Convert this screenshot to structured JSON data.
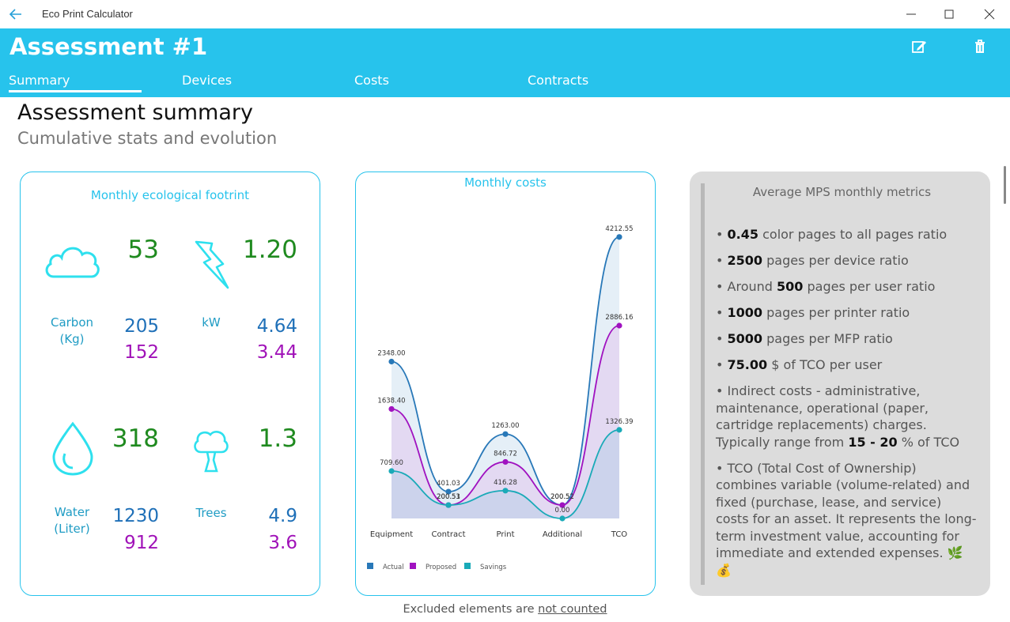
{
  "window": {
    "app_title": "Eco Print Calculator"
  },
  "header": {
    "title": "Assessment #1"
  },
  "tabs": [
    {
      "label": "Summary"
    },
    {
      "label": "Devices"
    },
    {
      "label": "Costs"
    },
    {
      "label": "Contracts"
    }
  ],
  "page": {
    "title": "Assessment summary",
    "subtitle": "Cumulative stats and evolution"
  },
  "eco": {
    "title": "Monthly ecological footrint",
    "carbon": {
      "label": "Carbon (Kg)",
      "total": "53",
      "actual": "205",
      "proposed": "152"
    },
    "kw": {
      "label": "kW",
      "total": "1.20",
      "actual": "4.64",
      "proposed": "3.44"
    },
    "water": {
      "label": "Water (Liter)",
      "total": "318",
      "actual": "1230",
      "proposed": "912"
    },
    "trees": {
      "label": "Trees",
      "total": "1.3",
      "actual": "4.9",
      "proposed": "3.6"
    }
  },
  "chart_data": {
    "type": "area",
    "title": "Monthly costs",
    "categories": [
      "Equipment",
      "Contract",
      "Print",
      "Additional",
      "TCO"
    ],
    "ylim": [
      0,
      4400
    ],
    "series": [
      {
        "name": "Actual",
        "values": [
          2348.0,
          401.03,
          1263.0,
          200.52,
          4212.55
        ],
        "labels": [
          "2348.00",
          "401.03",
          "1263.00",
          "200.52",
          "4212.55"
        ],
        "color": "#2878b8",
        "fill": "#dce9f4"
      },
      {
        "name": "Proposed",
        "values": [
          1638.4,
          200.51,
          846.72,
          200.52,
          2886.16
        ],
        "labels": [
          "1638.40",
          "200.51",
          "846.72",
          "200.52",
          "2886.16"
        ],
        "color": "#a012c0",
        "fill": "#e2d2f0"
      },
      {
        "name": "Savings",
        "values": [
          709.6,
          200.53,
          416.28,
          0.0,
          1326.39
        ],
        "labels": [
          "709.60",
          "200.53",
          "416.28",
          "0.00",
          "1326.39"
        ],
        "color": "#1aaab8",
        "fill": "#c4d0ea"
      }
    ]
  },
  "metrics": {
    "title": "Average MPS monthly metrics",
    "items": [
      {
        "bold": "0.45",
        "text": " color pages to all pages ratio"
      },
      {
        "bold": "2500",
        "text": " pages per device ratio"
      },
      {
        "pre": "Around ",
        "bold": "500",
        "text": " pages per user ratio"
      },
      {
        "bold": "1000",
        "text": " pages per printer ratio"
      },
      {
        "bold": "5000",
        "text": " pages per MFP ratio"
      },
      {
        "bold": "75.00",
        "text": " $ of TCO per user"
      }
    ],
    "indirect": {
      "pre": "Indirect costs - administrative, maintenance,  operational (paper, cartridge replacements) charges. Typically range from ",
      "bold": "15 - 20",
      "post": " % of TCO"
    },
    "tco": "TCO (Total Cost of Ownership) combines variable (volume-related) and fixed (purchase, lease, and service) costs for an asset. It represents the long-term investment value, accounting for immediate and extended expenses. 🌿💰"
  },
  "footer": {
    "text": "Excluded elements are ",
    "link": "not counted"
  }
}
